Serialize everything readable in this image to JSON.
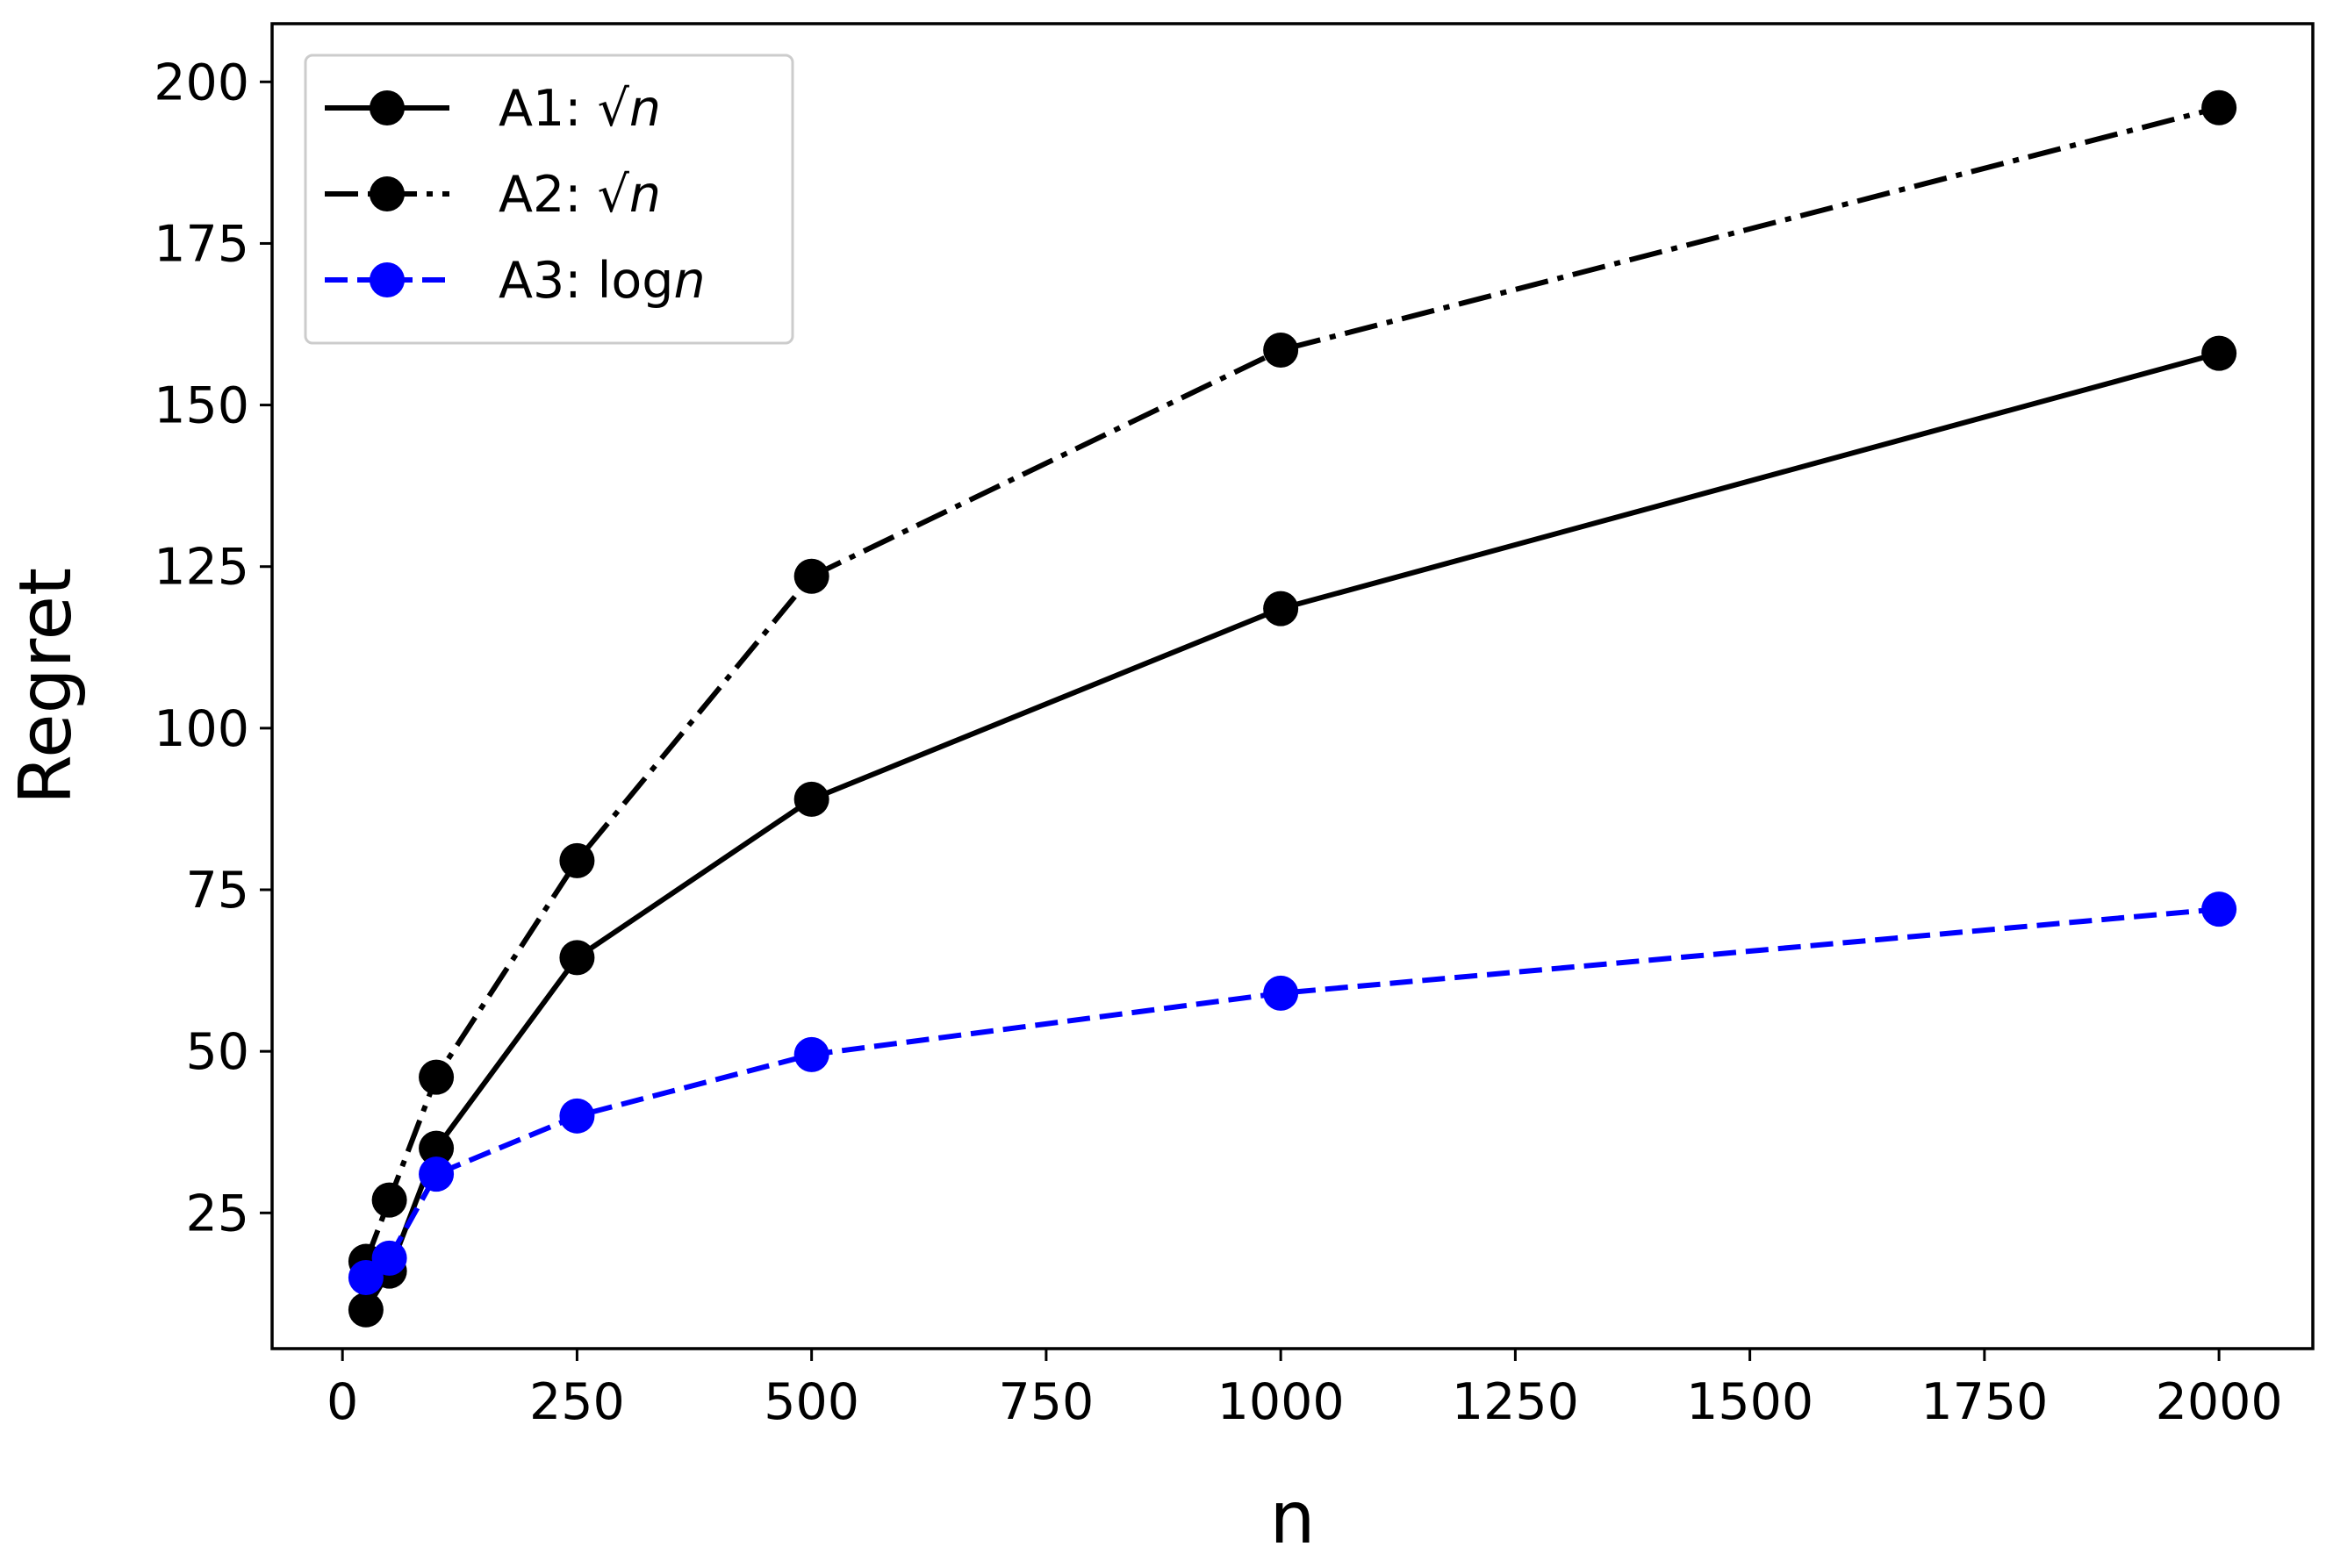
{
  "chart_data": {
    "type": "line",
    "xlabel": "n",
    "ylabel": "Regret",
    "xlim": [
      -75,
      2100
    ],
    "ylim": [
      4,
      209
    ],
    "xticks": [
      "0",
      "250",
      "500",
      "750",
      "1000",
      "1250",
      "1500",
      "1750",
      "2000"
    ],
    "yticks": [
      "25",
      "50",
      "75",
      "100",
      "125",
      "150",
      "175",
      "200"
    ],
    "grid": false,
    "legend_position": "top-left",
    "x": [
      25,
      50,
      100,
      250,
      500,
      1000,
      2000
    ],
    "series": [
      {
        "name": "A1: √n",
        "label_prefix": "A1: ",
        "label_math": "√n",
        "color": "#000000",
        "linestyle": "solid",
        "values": [
          10,
          16,
          35,
          64.5,
          89,
          118.5,
          158
        ]
      },
      {
        "name": "A2: √n",
        "label_prefix": "A2: ",
        "label_math": "√n",
        "color": "#000000",
        "linestyle": "dashdot",
        "values": [
          17.5,
          27,
          46,
          79.5,
          123.5,
          158.5,
          196
        ]
      },
      {
        "name": "A3:  logn",
        "label_prefix": "A3:  log",
        "label_math": "n",
        "color": "#0000ff",
        "linestyle": "dashed",
        "values": [
          15,
          18,
          31,
          40,
          49.5,
          59,
          72
        ]
      }
    ]
  }
}
